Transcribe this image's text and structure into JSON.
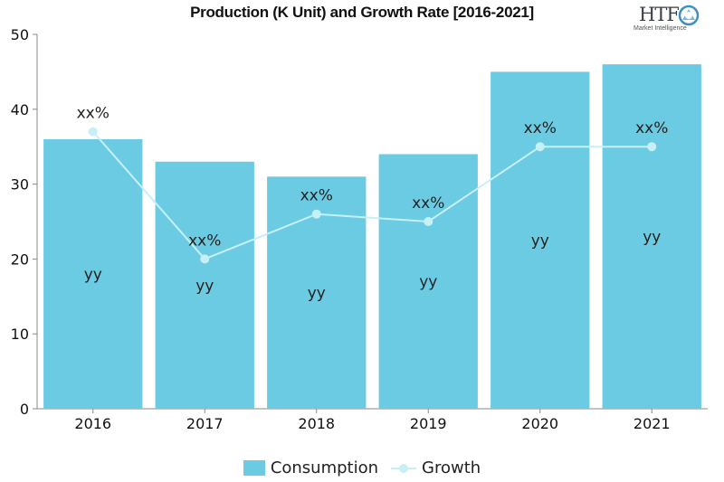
{
  "chart_data": {
    "type": "bar",
    "title": "Production (K Unit) and Growth Rate [2016-2021]",
    "categories": [
      "2016",
      "2017",
      "2018",
      "2019",
      "2020",
      "2021"
    ],
    "ylim": [
      0,
      50
    ],
    "yticks": [
      0,
      10,
      20,
      30,
      40,
      50
    ],
    "series": [
      {
        "name": "Consumption",
        "type": "bar",
        "values": [
          36,
          33,
          31,
          34,
          45,
          46
        ],
        "data_labels": [
          "yy",
          "yy",
          "yy",
          "yy",
          "yy",
          "yy"
        ],
        "color": "#6bcbe3"
      },
      {
        "name": "Growth",
        "type": "line",
        "values": [
          37,
          20,
          26,
          25,
          35,
          35
        ],
        "data_labels": [
          "xx%",
          "xx%",
          "xx%",
          "xx%",
          "xx%",
          "xx%"
        ],
        "color": "#c6f0f6"
      }
    ],
    "legend": "bottom-center",
    "grid": false
  },
  "logo": {
    "text": "HTF",
    "subtext": "Market Intelligence"
  }
}
